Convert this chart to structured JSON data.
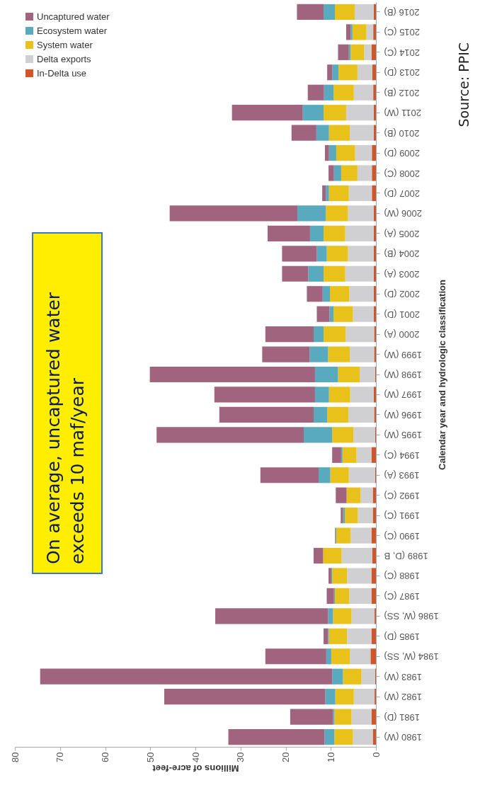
{
  "chart_data": {
    "type": "bar",
    "stacked": true,
    "orientation": "horizontal",
    "xlabel": "Millions of acre-feet",
    "ylabel": "Calendar year and hydrologic classification",
    "categories": [
      "2016 (B)",
      "2015 (C)",
      "2014 (C)",
      "2013 (D)",
      "2012 (B)",
      "2011 (W)",
      "2010 (B)",
      "2009 (D)",
      "2008 (C)",
      "2007 (D)",
      "2006 (W)",
      "2005 (A)",
      "2004 (B)",
      "2003 (A)",
      "2002 (D)",
      "2001 (D)",
      "2000 (A)",
      "1999 (W)",
      "1998 (W)",
      "1997 (W)",
      "1996 (W)",
      "1995 (W)",
      "1994 (C)",
      "1993 (A)",
      "1992 (C)",
      "1991 (C)",
      "1990 (C)",
      "1989 (D, B",
      "1988 (C)",
      "1987 (C)",
      "1986 (W, SS)",
      "1985 (D)",
      "1984 (W, SS)",
      "1983 (W)",
      "1982 (W)",
      "1981 (D)",
      "1980 (W)"
    ],
    "series": [
      {
        "name": "In-Delta use",
        "color": "#d0562a",
        "values": [
          0.5,
          0.6,
          1.0,
          0.8,
          0.6,
          0.5,
          0.5,
          0.9,
          0.9,
          0.9,
          0.5,
          0.5,
          0.5,
          0.5,
          0.5,
          0.5,
          0.4,
          0.4,
          0.2,
          0.5,
          0.4,
          0.2,
          1.0,
          0.2,
          0.7,
          0.7,
          1.0,
          0.8,
          1.0,
          1.0,
          0.3,
          1.0,
          1.2,
          0.2,
          0.3,
          1.0,
          0.7
        ]
      },
      {
        "name": "Delta exports",
        "color": "#d0d0d2",
        "values": [
          4.2,
          1.5,
          1.6,
          3.3,
          4.3,
          6.1,
          5.3,
          3.7,
          3.2,
          5.1,
          5.7,
          6.3,
          5.7,
          6.3,
          5.4,
          4.6,
          6.3,
          5.4,
          3.4,
          5.2,
          5.7,
          4.8,
          3.3,
          5.8,
          2.7,
          3.3,
          4.6,
          6.8,
          5.4,
          4.9,
          5.1,
          5.4,
          4.6,
          3.0,
          4.6,
          4.4,
          4.4
        ]
      },
      {
        "name": "System water",
        "color": "#e8c21a",
        "values": [
          4.4,
          3.1,
          3.0,
          4.2,
          4.5,
          5.0,
          4.6,
          4.2,
          3.6,
          4.4,
          4.9,
          4.8,
          4.7,
          4.8,
          4.3,
          4.3,
          4.9,
          4.8,
          4.8,
          4.7,
          4.7,
          4.7,
          3.1,
          4.1,
          3.1,
          2.9,
          3.2,
          4.1,
          3.3,
          3.2,
          4.1,
          4.0,
          4.1,
          4.1,
          4.1,
          3.8,
          4.1
        ]
      },
      {
        "name": "Ecosystem water",
        "color": "#5aaabf",
        "values": [
          2.5,
          0.4,
          0.4,
          1.4,
          2.1,
          4.6,
          2.8,
          1.6,
          1.6,
          0.7,
          6.3,
          3.0,
          2.2,
          3.4,
          1.6,
          0.9,
          2.2,
          4.1,
          5.1,
          3.1,
          3.0,
          6.3,
          0.3,
          2.6,
          null,
          0.4,
          0.2,
          null,
          0.2,
          0.2,
          1.1,
          0.2,
          1.1,
          2.4,
          2.2,
          0.3,
          2.2
        ]
      },
      {
        "name": "Uncaptured water",
        "color": "#a0647f",
        "values": [
          5.9,
          1.0,
          2.4,
          1.1,
          3.6,
          15.7,
          5.5,
          0.9,
          1.2,
          0.8,
          28.3,
          9.4,
          7.7,
          5.8,
          3.5,
          2.8,
          10.7,
          10.5,
          36.6,
          22.3,
          20.9,
          32.6,
          2.0,
          12.9,
          2.4,
          0.5,
          0.1,
          2.1,
          0.6,
          1.6,
          25.0,
          1.0,
          13.5,
          64.7,
          35.7,
          9.5,
          21.3
        ]
      }
    ],
    "xlim": [
      80,
      0
    ],
    "xticks": [
      0,
      10,
      20,
      30,
      40,
      50,
      60,
      70,
      80
    ],
    "grid": false,
    "legend": "top left",
    "annotations": [
      "On average, uncaptured water exceeds 10 maf/year",
      "Source: PPIC"
    ]
  }
}
